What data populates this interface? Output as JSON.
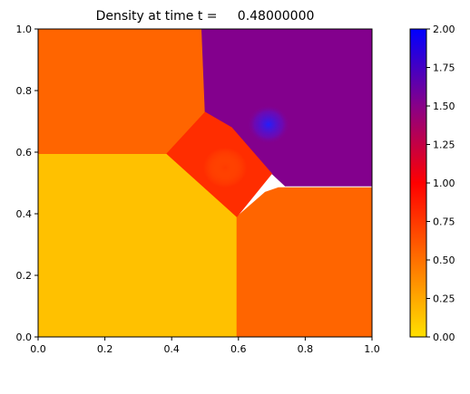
{
  "chart_data": [
    {
      "type": "heatmap",
      "title": "Density at time t =     0.48000000",
      "xlabel": "",
      "ylabel": "",
      "xlim": [
        0,
        1
      ],
      "ylim": [
        0,
        1
      ],
      "x_ticks": [
        "0.0",
        "0.2",
        "0.4",
        "0.6",
        "0.8",
        "1.0"
      ],
      "y_ticks": [
        "0.0",
        "0.2",
        "0.4",
        "0.6",
        "0.8",
        "1.0"
      ],
      "grid": false,
      "field": "density",
      "colormap": {
        "stops": [
          {
            "value": 0.0,
            "color": "#ffe000"
          },
          {
            "value": 0.5,
            "color": "#ff7000"
          },
          {
            "value": 1.0,
            "color": "#ff0000"
          },
          {
            "value": 1.5,
            "color": "#880088"
          },
          {
            "value": 2.0,
            "color": "#0000ff"
          }
        ]
      },
      "regions": [
        {
          "name": "lower-left",
          "value": 0.14,
          "polygon": [
            [
              0,
              0
            ],
            [
              0.595,
              0
            ],
            [
              0.595,
              0.39
            ],
            [
              0.385,
              0.595
            ],
            [
              0,
              0.595
            ]
          ]
        },
        {
          "name": "lower-right",
          "value": 0.55,
          "polygon": [
            [
              0.595,
              0
            ],
            [
              1,
              0
            ],
            [
              1,
              0.485
            ],
            [
              0.72,
              0.485
            ],
            [
              0.68,
              0.47
            ],
            [
              0.595,
              0.39
            ]
          ]
        },
        {
          "name": "upper-left",
          "value": 0.55,
          "polygon": [
            [
              0,
              0.595
            ],
            [
              0.385,
              0.595
            ],
            [
              0.5,
              0.73
            ],
            [
              0.49,
              1
            ],
            [
              0,
              1
            ]
          ]
        },
        {
          "name": "upper-right",
          "value": 1.52,
          "polygon": [
            [
              0.49,
              1
            ],
            [
              1,
              1
            ],
            [
              1,
              0.49
            ],
            [
              0.74,
              0.49
            ],
            [
              0.7,
              0.53
            ],
            [
              0.5,
              0.73
            ]
          ]
        },
        {
          "name": "center-diamond",
          "value": 0.8,
          "polygon": [
            [
              0.385,
              0.595
            ],
            [
              0.5,
              0.73
            ],
            [
              0.58,
              0.68
            ],
            [
              0.7,
              0.53
            ],
            [
              0.595,
              0.39
            ]
          ]
        }
      ],
      "features": [
        {
          "name": "upper-right-hotspot",
          "x": 0.69,
          "y": 0.69,
          "radius": 0.05,
          "value": 1.8
        },
        {
          "name": "core-swirl",
          "x": 0.56,
          "y": 0.55,
          "radius": 0.05,
          "value": 0.85
        }
      ],
      "colorbar": {
        "ticks": [
          "0.00",
          "0.25",
          "0.50",
          "0.75",
          "1.00",
          "1.25",
          "1.50",
          "1.75",
          "2.00"
        ],
        "range": [
          0,
          2
        ]
      }
    }
  ]
}
